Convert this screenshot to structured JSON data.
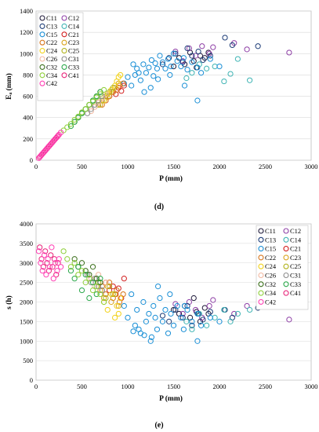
{
  "chart_data": [
    {
      "type": "scatter",
      "panel_label": "(d)",
      "xlabel": "P (mm)",
      "ylabel": "Eₐ (mm)",
      "xlim": [
        0,
        3000
      ],
      "ylim": [
        0,
        1400
      ],
      "xticks": [
        0,
        500,
        1000,
        1500,
        2000,
        2500,
        3000
      ],
      "yticks": [
        0,
        200,
        400,
        600,
        800,
        1000,
        1200,
        1400
      ],
      "grid": true,
      "legend": "top-left",
      "series": [
        {
          "name": "C11",
          "color": "#1f1a3a",
          "x": [
            1500,
            1560,
            1620,
            1680,
            1720,
            1750,
            1790,
            1840,
            1880
          ],
          "y": [
            880,
            960,
            900,
            1010,
            930,
            870,
            980,
            960,
            1010
          ]
        },
        {
          "name": "C12",
          "color": "#8e3fa6",
          "x": [
            1520,
            1600,
            1670,
            1740,
            1810,
            1890,
            1930,
            2160,
            2300,
            2760
          ],
          "y": [
            1020,
            930,
            1050,
            980,
            1070,
            1000,
            1060,
            1100,
            1040,
            1010
          ]
        },
        {
          "name": "C13",
          "color": "#1d3d78",
          "x": [
            1380,
            1450,
            1520,
            1600,
            1650,
            1700,
            1770,
            1820,
            1900,
            2060,
            2140,
            2420
          ],
          "y": [
            900,
            960,
            1000,
            920,
            1050,
            980,
            1020,
            940,
            980,
            1150,
            1080,
            1070
          ]
        },
        {
          "name": "C14",
          "color": "#3fb4b4",
          "x": [
            1640,
            1700,
            1780,
            1860,
            1950,
            2050,
            2120,
            2200,
            2330
          ],
          "y": [
            770,
            820,
            900,
            860,
            880,
            740,
            810,
            950,
            750
          ]
        },
        {
          "name": "C15",
          "color": "#1a8fd6",
          "x": [
            960,
            1000,
            1040,
            1080,
            1100,
            1140,
            1170,
            1200,
            1230,
            1260,
            1280,
            1300,
            1320,
            1350,
            1380,
            1410,
            1440,
            1470,
            1500,
            1540,
            1580,
            1610,
            1650,
            1700,
            1760,
            1800,
            1900,
            2000,
            1250,
            1180,
            1120,
            1060,
            1330,
            1460,
            1620,
            1760
          ],
          "y": [
            720,
            780,
            700,
            800,
            860,
            750,
            900,
            820,
            870,
            940,
            790,
            910,
            860,
            980,
            920,
            860,
            950,
            880,
            1000,
            930,
            880,
            960,
            850,
            920,
            870,
            820,
            950,
            880,
            680,
            640,
            820,
            900,
            760,
            800,
            700,
            560
          ]
        },
        {
          "name": "C21",
          "color": "#d21f1f",
          "x": [
            760,
            800,
            840,
            870,
            900,
            930,
            960
          ],
          "y": [
            560,
            600,
            640,
            620,
            680,
            650,
            700
          ]
        },
        {
          "name": "C22",
          "color": "#d6741a",
          "x": [
            720,
            760,
            800,
            840,
            880,
            910,
            950
          ],
          "y": [
            520,
            560,
            600,
            640,
            660,
            700,
            720
          ]
        },
        {
          "name": "C23",
          "color": "#d9a31a",
          "x": [
            700,
            740,
            780,
            820,
            860,
            900
          ],
          "y": [
            520,
            560,
            590,
            640,
            680,
            720
          ]
        },
        {
          "name": "C24",
          "color": "#f2d21a",
          "x": [
            740,
            780,
            820,
            860,
            880,
            900,
            920
          ],
          "y": [
            560,
            620,
            660,
            700,
            740,
            780,
            800
          ]
        },
        {
          "name": "C25",
          "color": "#b0b21a",
          "x": [
            680,
            720,
            760,
            800,
            840
          ],
          "y": [
            520,
            560,
            600,
            640,
            680
          ]
        },
        {
          "name": "C26",
          "color": "#f2b8a0",
          "x": [
            600,
            640,
            680,
            720,
            760
          ],
          "y": [
            460,
            500,
            540,
            580,
            620
          ]
        },
        {
          "name": "C31",
          "color": "#8c8c8c",
          "x": [
            560,
            600,
            640,
            680,
            720
          ],
          "y": [
            440,
            480,
            520,
            560,
            600
          ]
        },
        {
          "name": "C32",
          "color": "#3a6e1a",
          "x": [
            420,
            460,
            500,
            540,
            580,
            620,
            660,
            700
          ],
          "y": [
            360,
            400,
            440,
            480,
            520,
            560,
            600,
            640
          ]
        },
        {
          "name": "C33",
          "color": "#2aa84a",
          "x": [
            380,
            420,
            460,
            500,
            540,
            580,
            620,
            660,
            700
          ],
          "y": [
            320,
            360,
            400,
            440,
            480,
            520,
            560,
            600,
            640
          ]
        },
        {
          "name": "C34",
          "color": "#8fcf3a",
          "x": [
            300,
            340,
            380,
            420,
            460,
            500,
            540,
            580,
            620,
            660,
            700,
            740
          ],
          "y": [
            280,
            310,
            340,
            380,
            410,
            450,
            480,
            520,
            550,
            590,
            620,
            660
          ]
        },
        {
          "name": "C41",
          "color": "#e8257a",
          "x": [
            40,
            60,
            80,
            100,
            120,
            140,
            160,
            180,
            200,
            220,
            240
          ],
          "y": [
            30,
            50,
            70,
            90,
            110,
            130,
            150,
            170,
            190,
            210,
            230
          ]
        },
        {
          "name": "C42",
          "color": "#ff3fb4",
          "x": [
            30,
            50,
            70,
            90,
            110,
            130,
            150,
            170,
            190,
            210,
            230,
            250,
            270
          ],
          "y": [
            20,
            40,
            60,
            80,
            100,
            120,
            140,
            160,
            180,
            200,
            220,
            240,
            260
          ]
        }
      ]
    },
    {
      "type": "scatter",
      "panel_label": "(e)",
      "xlabel": "P (mm)",
      "ylabel": "s (h)",
      "xlim": [
        0,
        3000
      ],
      "ylim": [
        0,
        4000
      ],
      "xticks": [
        0,
        500,
        1000,
        1500,
        2000,
        2500,
        3000
      ],
      "yticks": [
        0,
        500,
        1000,
        1500,
        2000,
        2500,
        3000,
        3500,
        4000
      ],
      "grid": true,
      "legend": "right",
      "series": [
        {
          "name": "C11",
          "color": "#1f1a3a",
          "x": [
            1500,
            1560,
            1620,
            1680,
            1720,
            1750,
            1790,
            1840,
            1880
          ],
          "y": [
            1800,
            1700,
            1900,
            1600,
            2100,
            1750,
            1500,
            1850,
            1700
          ]
        },
        {
          "name": "C12",
          "color": "#8e3fa6",
          "x": [
            1520,
            1600,
            1670,
            1740,
            1810,
            1890,
            1930,
            2160,
            2300,
            2760
          ],
          "y": [
            1950,
            1700,
            2000,
            1800,
            1600,
            1900,
            2050,
            1700,
            1900,
            1550
          ]
        },
        {
          "name": "C13",
          "color": "#1d3d78",
          "x": [
            1380,
            1450,
            1520,
            1600,
            1650,
            1700,
            1770,
            1820,
            1900,
            2060,
            2140,
            2420
          ],
          "y": [
            1650,
            1500,
            1800,
            1600,
            1900,
            1400,
            1700,
            1550,
            1750,
            1800,
            1600,
            1850
          ]
        },
        {
          "name": "C14",
          "color": "#3fb4b4",
          "x": [
            1640,
            1700,
            1780,
            1860,
            1950,
            2050,
            2120,
            2200,
            2330
          ],
          "y": [
            1500,
            1300,
            1700,
            1400,
            1600,
            1800,
            1500,
            1700,
            1800
          ]
        },
        {
          "name": "C15",
          "color": "#1a8fd6",
          "x": [
            960,
            1000,
            1040,
            1080,
            1100,
            1140,
            1170,
            1200,
            1230,
            1260,
            1280,
            1300,
            1320,
            1350,
            1380,
            1410,
            1440,
            1470,
            1500,
            1540,
            1580,
            1610,
            1650,
            1700,
            1760,
            1800,
            1900,
            2000,
            1250,
            1180,
            1120,
            1060,
            1330,
            1460,
            1620,
            1760
          ],
          "y": [
            1900,
            1600,
            2200,
            1400,
            1800,
            1200,
            2000,
            1500,
            1700,
            1100,
            1900,
            1600,
            1300,
            2100,
            1500,
            1800,
            1200,
            1700,
            1400,
            1900,
            1600,
            1300,
            1800,
            1500,
            1700,
            1400,
            1600,
            1500,
            1000,
            1150,
            1300,
            1250,
            2400,
            2200,
            1900,
            1000
          ]
        },
        {
          "name": "C21",
          "color": "#d21f1f",
          "x": [
            760,
            800,
            840,
            870,
            900,
            930,
            960
          ],
          "y": [
            2500,
            2300,
            2400,
            2200,
            2350,
            2100,
            2600
          ]
        },
        {
          "name": "C22",
          "color": "#d6741a",
          "x": [
            720,
            760,
            800,
            840,
            880,
            910,
            950
          ],
          "y": [
            2400,
            2200,
            2500,
            2100,
            2300,
            2000,
            2200
          ]
        },
        {
          "name": "C23",
          "color": "#d9a31a",
          "x": [
            700,
            740,
            780,
            820,
            860,
            900
          ],
          "y": [
            2300,
            2100,
            2400,
            2000,
            2200,
            1900
          ]
        },
        {
          "name": "C24",
          "color": "#f2d21a",
          "x": [
            740,
            780,
            820,
            860,
            880,
            900,
            920
          ],
          "y": [
            2000,
            1800,
            2200,
            1600,
            1900,
            1700,
            2100
          ]
        },
        {
          "name": "C25",
          "color": "#b0b21a",
          "x": [
            680,
            720,
            760,
            800,
            840
          ],
          "y": [
            2500,
            2300,
            2100,
            2400,
            2200
          ]
        },
        {
          "name": "C26",
          "color": "#f2b8a0",
          "x": [
            600,
            640,
            680,
            720,
            760
          ],
          "y": [
            2600,
            2400,
            2700,
            2300,
            2500
          ]
        },
        {
          "name": "C31",
          "color": "#8c8c8c",
          "x": [
            560,
            600,
            640,
            680,
            720
          ],
          "y": [
            2700,
            2500,
            2600,
            2400,
            2300
          ]
        },
        {
          "name": "C32",
          "color": "#3a6e1a",
          "x": [
            420,
            460,
            500,
            540,
            580,
            620,
            660,
            700
          ],
          "y": [
            3100,
            2900,
            3000,
            2800,
            2700,
            2900,
            2600,
            2500
          ]
        },
        {
          "name": "C33",
          "color": "#2aa84a",
          "x": [
            380,
            420,
            460,
            500,
            540,
            580,
            620,
            660,
            700
          ],
          "y": [
            2800,
            2600,
            2900,
            2300,
            2700,
            2100,
            2500,
            2200,
            2600
          ]
        },
        {
          "name": "C34",
          "color": "#8fcf3a",
          "x": [
            300,
            340,
            380,
            420,
            460,
            500,
            540,
            580,
            620,
            660,
            700,
            740
          ],
          "y": [
            3300,
            3100,
            2900,
            3000,
            2700,
            2800,
            2500,
            2600,
            2300,
            2400,
            2200,
            2000
          ]
        },
        {
          "name": "C41",
          "color": "#e8257a",
          "x": [
            40,
            60,
            80,
            100,
            120,
            140,
            160,
            180,
            200,
            220,
            240
          ],
          "y": [
            3400,
            3100,
            2900,
            3300,
            3000,
            2800,
            3200,
            2900,
            3100,
            2700,
            3000
          ]
        },
        {
          "name": "C42",
          "color": "#ff3fb4",
          "x": [
            30,
            50,
            70,
            90,
            110,
            130,
            150,
            170,
            190,
            210,
            230,
            250,
            270
          ],
          "y": [
            3300,
            3000,
            2800,
            3200,
            2700,
            3100,
            2900,
            3400,
            2600,
            3000,
            2800,
            3100,
            2900
          ]
        }
      ]
    }
  ]
}
